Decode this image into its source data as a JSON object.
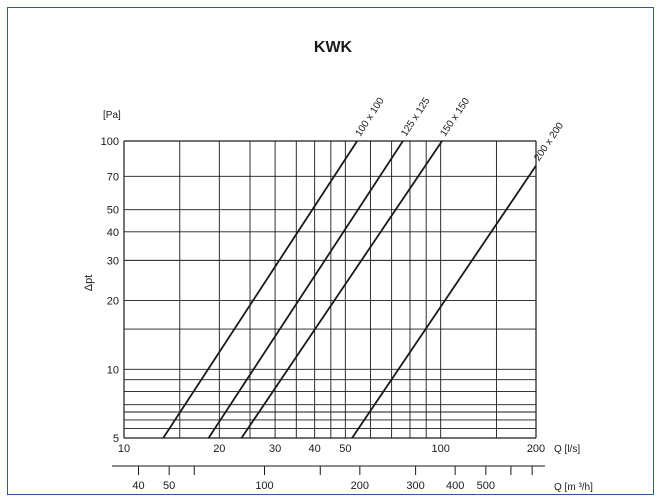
{
  "chart_data": {
    "type": "line",
    "title": "KWK",
    "x_scale": "log",
    "y_scale": "log",
    "x_range": [
      10,
      200
    ],
    "y_range": [
      5,
      100
    ],
    "x_unit_label": "Q [l/s]",
    "y_unit_label": "[Pa]",
    "y_axis_label": "Δpt",
    "x_tick_labels": [
      {
        "v": 10,
        "t": "10"
      },
      {
        "v": 20,
        "t": "20"
      },
      {
        "v": 30,
        "t": "30"
      },
      {
        "v": 40,
        "t": "40"
      },
      {
        "v": 50,
        "t": "50"
      },
      {
        "v": 100,
        "t": "100"
      },
      {
        "v": 200,
        "t": "200"
      }
    ],
    "y_tick_labels": [
      {
        "v": 5,
        "t": "5"
      },
      {
        "v": 10,
        "t": "10"
      },
      {
        "v": 20,
        "t": "20"
      },
      {
        "v": 30,
        "t": "30"
      },
      {
        "v": 40,
        "t": "40"
      },
      {
        "v": 50,
        "t": "50"
      },
      {
        "v": 70,
        "t": "70"
      },
      {
        "v": 100,
        "t": "100"
      }
    ],
    "x_gridlines": [
      10,
      15,
      20,
      25,
      30,
      35,
      40,
      45,
      50,
      60,
      70,
      80,
      90,
      100,
      150,
      200
    ],
    "y_gridlines": [
      5,
      5.5,
      6,
      6.5,
      7,
      8,
      9,
      10,
      15,
      20,
      30,
      40,
      50,
      70,
      100
    ],
    "secondary_axis": {
      "unit_label": "Q [m ³/h]",
      "tick_labels": [
        {
          "v": 40,
          "t": "40"
        },
        {
          "v": 50,
          "t": "50"
        },
        {
          "v": 100,
          "t": "100"
        },
        {
          "v": 200,
          "t": "200"
        },
        {
          "v": 300,
          "t": "300"
        },
        {
          "v": 400,
          "t": "400"
        },
        {
          "v": 500,
          "t": "500"
        }
      ],
      "ticks": [
        40,
        50,
        60,
        100,
        150,
        200,
        300,
        400,
        500,
        600,
        700
      ]
    },
    "series": [
      {
        "name": "100 x 100",
        "points": [
          [
            13.3,
            5
          ],
          [
            54.5,
            100
          ]
        ]
      },
      {
        "name": "125 x 125",
        "points": [
          [
            18.5,
            5
          ],
          [
            76,
            100
          ]
        ]
      },
      {
        "name": "150 x 150",
        "points": [
          [
            23.5,
            5
          ],
          [
            101,
            100
          ]
        ]
      },
      {
        "name": "200 x 200",
        "points": [
          [
            52.5,
            5
          ],
          [
            200,
            78
          ]
        ]
      }
    ],
    "grid": true,
    "line_color": "#1a1a1a",
    "grid_color": "#1a1a1a",
    "border_color": "#2b5c99"
  }
}
